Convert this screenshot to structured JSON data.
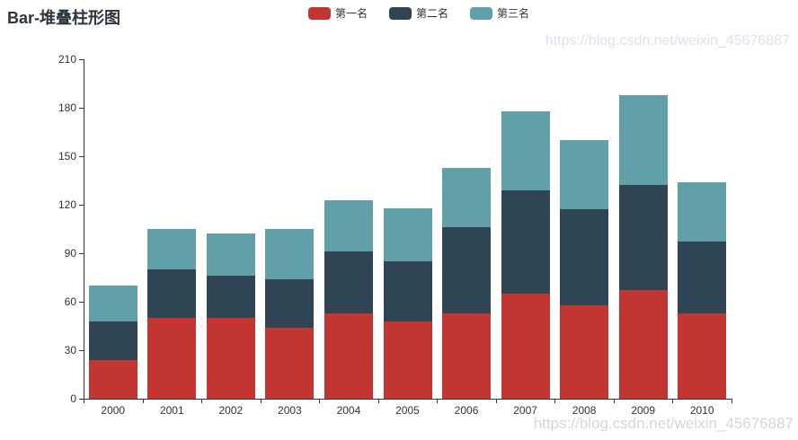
{
  "title": "Bar-堆叠柱形图",
  "legend": {
    "position": "top-center",
    "items": [
      {
        "label": "第一名",
        "color": "#c23531"
      },
      {
        "label": "第二名",
        "color": "#2f4554"
      },
      {
        "label": "第三名",
        "color": "#61a0a8"
      }
    ]
  },
  "watermarks": {
    "top": "https://blog.csdn.net/weixin_45676887",
    "bottom": "https://blog.csdn.net/weixin_45676887"
  },
  "chart_data": {
    "type": "bar",
    "stacked": true,
    "title": "Bar-堆叠柱形图",
    "xlabel": "",
    "ylabel": "",
    "grid": false,
    "legend_position": "top-center",
    "axis_color": "#333333",
    "categories": [
      "2000",
      "2001",
      "2002",
      "2003",
      "2004",
      "2005",
      "2006",
      "2007",
      "2008",
      "2009",
      "2010"
    ],
    "series": [
      {
        "name": "第一名",
        "color": "#c23531",
        "values": [
          24,
          50,
          50,
          44,
          53,
          48,
          53,
          65,
          58,
          67,
          53
        ]
      },
      {
        "name": "第二名",
        "color": "#2f4554",
        "values": [
          24,
          30,
          26,
          30,
          38,
          37,
          53,
          64,
          59,
          65,
          44
        ]
      },
      {
        "name": "第三名",
        "color": "#61a0a8",
        "values": [
          22,
          25,
          26,
          31,
          32,
          33,
          37,
          49,
          43,
          56,
          37
        ]
      }
    ],
    "stack_totals": [
      70,
      105,
      102,
      105,
      123,
      118,
      143,
      178,
      160,
      188,
      134
    ],
    "ylim": [
      0,
      210
    ],
    "ytick_interval": 30,
    "yticks": [
      0,
      30,
      60,
      90,
      120,
      150,
      180,
      210
    ]
  }
}
